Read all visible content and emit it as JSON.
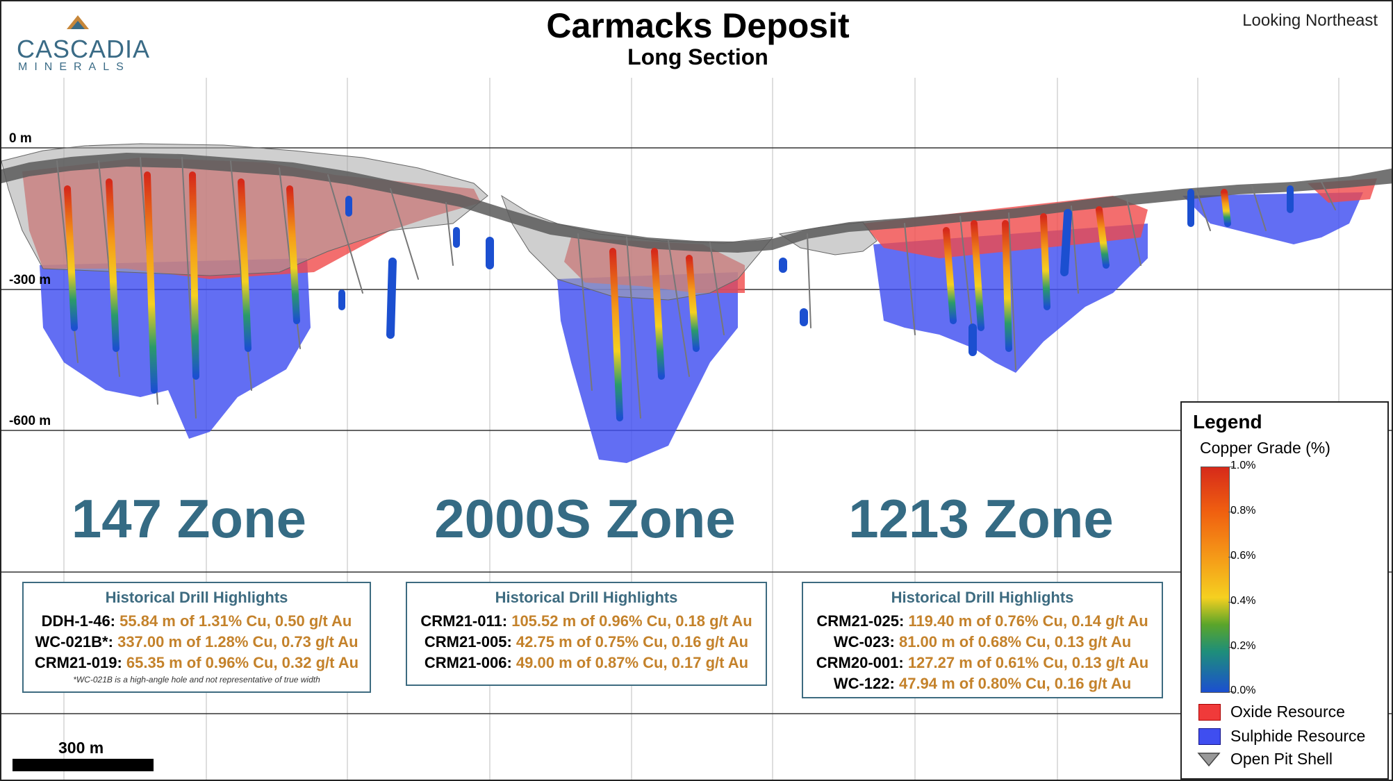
{
  "logo": {
    "name": "CASCADIA",
    "sub": "MINERALS"
  },
  "title": "Carmacks Deposit",
  "subtitle": "Long Section",
  "orientation": "Looking Northeast",
  "depth_labels": [
    "0 m",
    "-300 m",
    "-600 m"
  ],
  "zones": [
    "147 Zone",
    "2000S Zone",
    "1213 Zone"
  ],
  "highlights": [
    {
      "title": "Historical Drill Highlights",
      "rows": [
        {
          "hole": "DDH-1-46:",
          "value": "55.84 m of 1.31% Cu, 0.50 g/t Au"
        },
        {
          "hole": "WC-021B*:",
          "value": "337.00 m of 1.28% Cu, 0.73 g/t Au"
        },
        {
          "hole": "CRM21-019:",
          "value": "65.35 m of 0.96% Cu, 0.32 g/t Au"
        }
      ],
      "note": "*WC-021B is a high-angle hole and not representative of true width"
    },
    {
      "title": "Historical Drill Highlights",
      "rows": [
        {
          "hole": "CRM21-011:",
          "value": "105.52 m of 0.96% Cu, 0.18 g/t Au"
        },
        {
          "hole": "CRM21-005:",
          "value": "42.75 m of 0.75% Cu, 0.16 g/t Au"
        },
        {
          "hole": "CRM21-006:",
          "value": "49.00 m of 0.87% Cu, 0.17 g/t Au"
        }
      ],
      "note": ""
    },
    {
      "title": "Historical Drill Highlights",
      "rows": [
        {
          "hole": "CRM21-025:",
          "value": "119.40 m of 0.76% Cu, 0.14 g/t Au"
        },
        {
          "hole": "WC-023:",
          "value": "81.00 m of 0.68% Cu, 0.13 g/t Au"
        },
        {
          "hole": "CRM20-001:",
          "value": "127.27 m of 0.61% Cu, 0.13 g/t Au"
        },
        {
          "hole": "WC-122:",
          "value": "47.94 m of 0.80% Cu, 0.16 g/t Au"
        }
      ],
      "note": ""
    }
  ],
  "legend": {
    "title": "Legend",
    "grade_label": "Copper Grade (%)",
    "ticks": [
      "1.0%",
      "0.8%",
      "0.6%",
      "0.4%",
      "0.2%",
      "0.0%"
    ],
    "items": [
      {
        "label": "Oxide Resource",
        "color": "#f03a3a",
        "icon": "oxide-swatch"
      },
      {
        "label": "Sulphide Resource",
        "color": "#3f4ef0",
        "icon": "sulphide-swatch"
      },
      {
        "label": "Open Pit Shell",
        "color": "#9a9a9a",
        "icon": "pit-shell-icon"
      }
    ]
  },
  "scale_bar": "300 m",
  "colors": {
    "accent": "#356b84",
    "highlight_value": "#c4822b",
    "oxide": "#f03a3a",
    "sulphide": "#3f4ef0",
    "pit": "#9a9a9a"
  }
}
